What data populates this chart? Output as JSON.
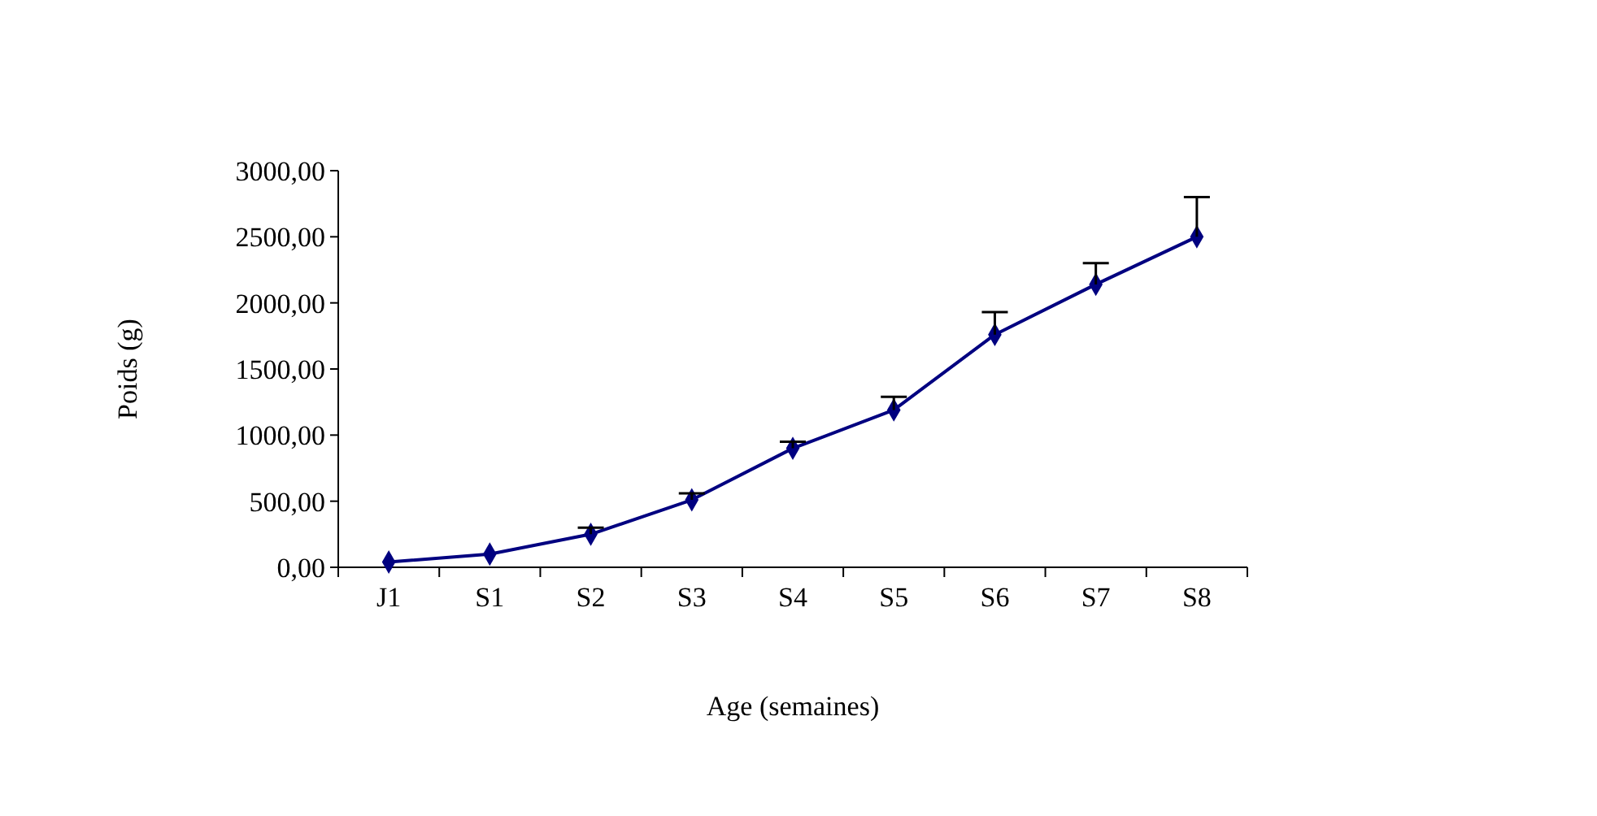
{
  "chart_data": {
    "type": "line",
    "xlabel": "Age (semaines)",
    "ylabel": "Poids (g)",
    "categories": [
      "J1",
      "S1",
      "S2",
      "S3",
      "S4",
      "S5",
      "S6",
      "S7",
      "S8"
    ],
    "series": [
      {
        "color": "#000080",
        "values": [
          40,
          100,
          250,
          510,
          900,
          1190,
          1760,
          2140,
          2500
        ],
        "errors": [
          null,
          null,
          [
            250,
            300
          ],
          [
            510,
            560
          ],
          [
            900,
            950
          ],
          [
            1190,
            1290
          ],
          [
            1760,
            1930
          ],
          [
            2140,
            2300
          ],
          [
            2500,
            2800
          ]
        ]
      }
    ],
    "ylim": [
      0,
      3000
    ],
    "yticks": [
      {
        "value": 0,
        "label": "0,00"
      },
      {
        "value": 500,
        "label": "500,00"
      },
      {
        "value": 1000,
        "label": "1000,00"
      },
      {
        "value": 1500,
        "label": "1500,00"
      },
      {
        "value": 2000,
        "label": "2000,00"
      },
      {
        "value": 2500,
        "label": "2500,00"
      },
      {
        "value": 3000,
        "label": "3000,00"
      }
    ],
    "marker": "diamond",
    "grid": false
  }
}
